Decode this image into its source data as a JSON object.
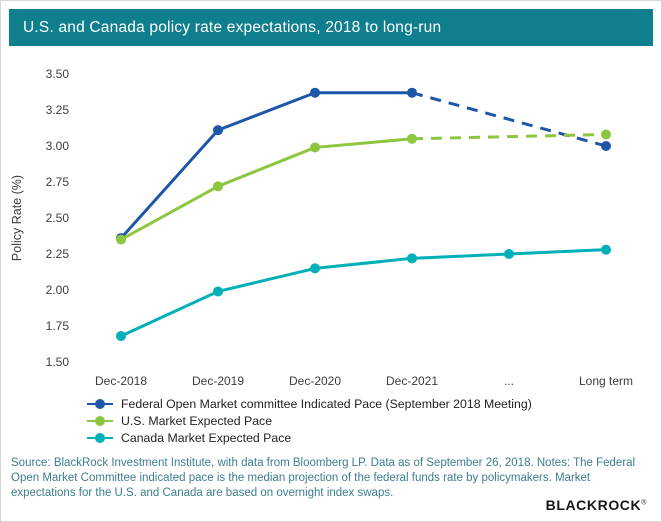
{
  "header": {
    "title": "U.S. and Canada policy rate expectations, 2018 to long-run"
  },
  "chart_data": {
    "type": "line",
    "title": "U.S. and Canada policy rate expectations, 2018 to long-run",
    "categories": [
      "Dec-2018",
      "Dec-2019",
      "Dec-2020",
      "Dec-2021",
      "...",
      "Long term"
    ],
    "series": [
      {
        "name": "Federal Open Market committee Indicated Pace (September 2018 Meeting)",
        "color": "#1f57a8",
        "values": [
          2.36,
          3.11,
          3.37,
          3.37,
          null,
          3.0
        ],
        "dash_from": 3
      },
      {
        "name": "U.S. Market Expected Pace",
        "color": "#8dc63f",
        "values": [
          2.35,
          2.72,
          2.99,
          3.05,
          null,
          3.08
        ],
        "dash_from": 3
      },
      {
        "name": "Canada Market Expected Pace",
        "color": "#00b0b9",
        "values": [
          1.68,
          1.99,
          2.15,
          2.22,
          2.25,
          2.28
        ],
        "dash_from": null
      }
    ],
    "xlabel": "",
    "ylabel": "Policy Rate (%)",
    "ylim": [
      1.5,
      3.5
    ],
    "yticks": [
      "3.50",
      "3.25",
      "3.00",
      "2.75",
      "2.50",
      "2.25",
      "2.00",
      "1.75",
      "1.50"
    ],
    "grid": false,
    "legend_position": "bottom-left",
    "annotation": "dashed line segments show projection beyond Dec-2021"
  },
  "footer": {
    "source": "Source: BlackRock Investment Institute, with data from Bloomberg LP. Data as of September 26, 2018. Notes: The Federal Open Market Committee indicated pace is the median projection of the federal funds rate by policymakers. Market expectations for the U.S. and Canada are based on overnight index swaps.",
    "brand": "BLACKROCK",
    "brand_mark": "®"
  },
  "colors": {
    "header_bg": "#0f7e8d",
    "fomc_blue": "#1f57a8",
    "us_green": "#8dc63f",
    "canada_teal": "#00b0b9",
    "source_text": "#3e7d8d"
  }
}
